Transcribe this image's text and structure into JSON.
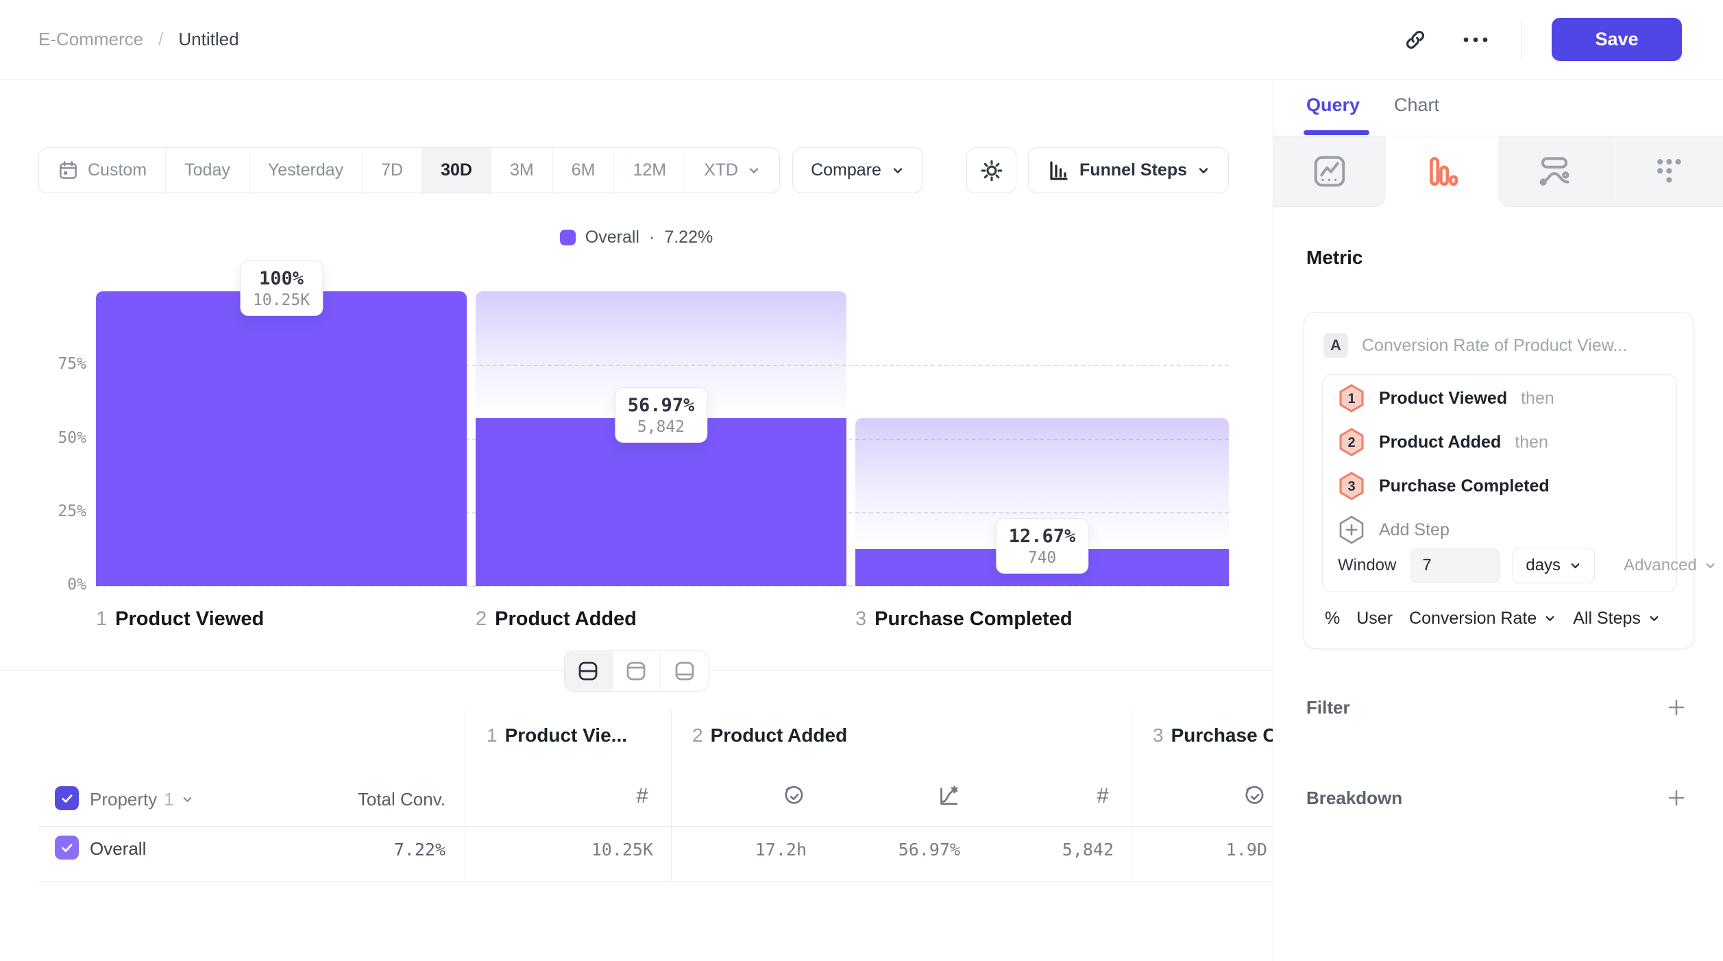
{
  "header": {
    "breadcrumb_parent": "E-Commerce",
    "breadcrumb_sep": "/",
    "breadcrumb_current": "Untitled",
    "save_label": "Save"
  },
  "toolbar": {
    "ranges": [
      "Custom",
      "Today",
      "Yesterday",
      "7D",
      "30D",
      "3M",
      "6M",
      "12M",
      "XTD"
    ],
    "active_range": "30D",
    "compare_label": "Compare",
    "view_label": "Funnel Steps"
  },
  "chart_data": {
    "type": "bar",
    "subtype": "funnel-steps",
    "legend": {
      "label": "Overall",
      "sep": "·",
      "value": "7.22%"
    },
    "y_ticks": [
      "75%",
      "50%",
      "25%",
      "0%"
    ],
    "ylim": [
      0,
      100
    ],
    "grid": "dashed-horizontal",
    "categories": [
      "Product Viewed",
      "Product Added",
      "Purchase Completed"
    ],
    "step_numbers": [
      "1",
      "2",
      "3"
    ],
    "series": [
      {
        "name": "Overall",
        "values": [
          100,
          56.97,
          12.67
        ],
        "counts": [
          10250,
          5842,
          740
        ]
      }
    ],
    "pct_display": [
      "100%",
      "56.97%",
      "12.67%"
    ],
    "count_display": [
      "10.25K",
      "5,842",
      "740"
    ],
    "colors": {
      "bar": "#7a58fc",
      "ghost_top": "rgba(122,88,252,0.30)"
    }
  },
  "table": {
    "property_label": "Property",
    "property_index": "1",
    "total_conv_label": "Total Conv.",
    "step_headers": [
      {
        "num": "1",
        "name": "Product Vie..."
      },
      {
        "num": "2",
        "name": "Product Added"
      },
      {
        "num": "3",
        "name": "Purchase C"
      }
    ],
    "row": {
      "name": "Overall",
      "total_conv": "7.22%",
      "values": [
        "10.25K",
        "17.2h",
        "56.97%",
        "5,842",
        "1.9D"
      ]
    }
  },
  "panel": {
    "tabs": {
      "query": "Query",
      "chart": "Chart"
    },
    "metric_title": "Metric",
    "formula_badge": "A",
    "formula_text": "Conversion Rate of Product View...",
    "steps": [
      {
        "num": "1",
        "name": "Product Viewed",
        "suffix": "then"
      },
      {
        "num": "2",
        "name": "Product Added",
        "suffix": "then"
      },
      {
        "num": "3",
        "name": "Purchase Completed",
        "suffix": ""
      }
    ],
    "add_step_label": "Add Step",
    "window_label": "Window",
    "window_value": "7",
    "window_unit": "days",
    "advanced_label": "Advanced",
    "measure": {
      "symbol": "%",
      "entity": "User",
      "metric": "Conversion Rate",
      "scope": "All Steps"
    },
    "filter_label": "Filter",
    "breakdown_label": "Breakdown",
    "colors": {
      "accent": "#4f46e5",
      "funnel_icon": "#f87a62",
      "hexagon_border": "#ef7e67",
      "hexagon_fill": "#f9cfc3"
    }
  }
}
